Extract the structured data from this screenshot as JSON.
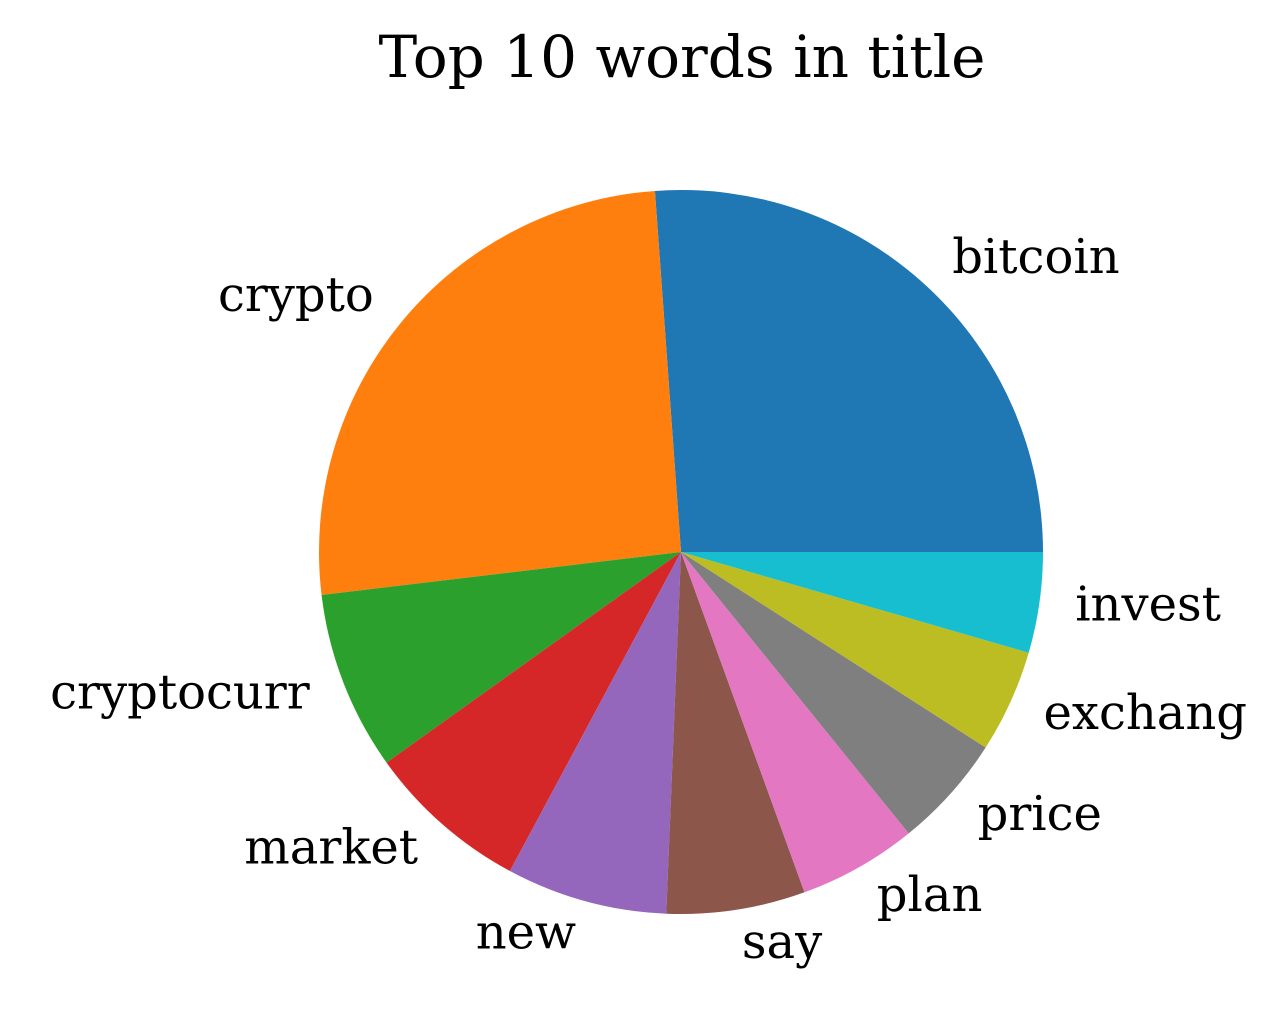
{
  "chart_data": {
    "type": "pie",
    "title": "Top 10 words in title",
    "start_angle_deg": 0,
    "direction": "counterclockwise",
    "slices": [
      {
        "label": "bitcoin",
        "value": 26.2,
        "color": "#1f77b4"
      },
      {
        "label": "crypto",
        "value": 25.8,
        "color": "#ff7f0e"
      },
      {
        "label": "cryptocurr",
        "value": 8.0,
        "color": "#2ca02c"
      },
      {
        "label": "market",
        "value": 7.3,
        "color": "#d62728"
      },
      {
        "label": "new",
        "value": 7.2,
        "color": "#9467bd"
      },
      {
        "label": "say",
        "value": 6.2,
        "color": "#8c564b"
      },
      {
        "label": "plan",
        "value": 5.3,
        "color": "#e377c2"
      },
      {
        "label": "price",
        "value": 5.1,
        "color": "#7f7f7f"
      },
      {
        "label": "exchang",
        "value": 4.6,
        "color": "#bcbd22"
      },
      {
        "label": "invest",
        "value": 4.5,
        "color": "#17becf"
      }
    ]
  }
}
